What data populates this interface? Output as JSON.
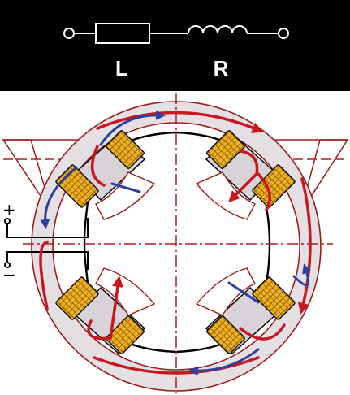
{
  "header": {
    "label_left": "L",
    "label_right": "R",
    "background": "#000000",
    "symbols": [
      "resistor-icon",
      "inductor-icon"
    ]
  },
  "terminals": {
    "plus": "+",
    "minus": "−"
  },
  "colors": {
    "housing_fill": "#e4dfe3",
    "housing_stroke": "#9b1b1b",
    "flux_red": "#c8171f",
    "flux_blue": "#2f3fa0",
    "coil_gold": "#f2b01e",
    "centerline": "#b21e1e"
  },
  "poles": [
    "pole-top-left",
    "pole-top-right",
    "pole-bottom-left",
    "pole-bottom-right"
  ]
}
